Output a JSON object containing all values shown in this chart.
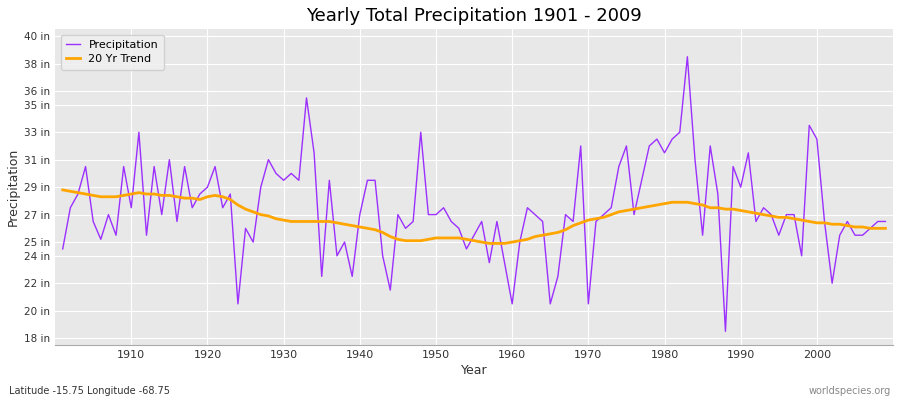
{
  "title": "Yearly Total Precipitation 1901 - 2009",
  "xlabel": "Year",
  "ylabel": "Precipitation",
  "bottom_left": "Latitude -15.75 Longitude -68.75",
  "bottom_right": "worldspecies.org",
  "precip_color": "#9B30FF",
  "trend_color": "#FFA500",
  "fig_bg_color": "#FFFFFF",
  "plot_bg_color": "#E8E8E8",
  "grid_color": "#FFFFFF",
  "ylim": [
    17.5,
    40.5
  ],
  "yticks": [
    18,
    20,
    22,
    24,
    25,
    27,
    29,
    31,
    33,
    35,
    36,
    38,
    40
  ],
  "xlim": [
    1900,
    2010
  ],
  "xticks": [
    1910,
    1920,
    1930,
    1940,
    1950,
    1960,
    1970,
    1980,
    1990,
    2000
  ],
  "years": [
    1901,
    1902,
    1903,
    1904,
    1905,
    1906,
    1907,
    1908,
    1909,
    1910,
    1911,
    1912,
    1913,
    1914,
    1915,
    1916,
    1917,
    1918,
    1919,
    1920,
    1921,
    1922,
    1923,
    1924,
    1925,
    1926,
    1927,
    1928,
    1929,
    1930,
    1931,
    1932,
    1933,
    1934,
    1935,
    1936,
    1937,
    1938,
    1939,
    1940,
    1941,
    1942,
    1943,
    1944,
    1945,
    1946,
    1947,
    1948,
    1949,
    1950,
    1951,
    1952,
    1953,
    1954,
    1955,
    1956,
    1957,
    1958,
    1959,
    1960,
    1961,
    1962,
    1963,
    1964,
    1965,
    1966,
    1967,
    1968,
    1969,
    1970,
    1971,
    1972,
    1973,
    1974,
    1975,
    1976,
    1977,
    1978,
    1979,
    1980,
    1981,
    1982,
    1983,
    1984,
    1985,
    1986,
    1987,
    1988,
    1989,
    1990,
    1991,
    1992,
    1993,
    1994,
    1995,
    1996,
    1997,
    1998,
    1999,
    2000,
    2001,
    2002,
    2003,
    2004,
    2005,
    2006,
    2007,
    2008,
    2009
  ],
  "precip": [
    24.5,
    27.5,
    28.5,
    30.5,
    26.5,
    25.2,
    27.0,
    25.5,
    30.5,
    27.5,
    33.0,
    25.5,
    30.5,
    27.0,
    31.0,
    26.5,
    30.5,
    27.5,
    28.5,
    29.0,
    30.5,
    27.5,
    28.5,
    20.5,
    26.0,
    25.0,
    29.0,
    31.0,
    30.0,
    29.5,
    30.0,
    29.5,
    35.5,
    31.5,
    22.5,
    29.5,
    24.0,
    25.0,
    22.5,
    27.0,
    29.5,
    29.5,
    24.0,
    21.5,
    27.0,
    26.0,
    26.5,
    33.0,
    27.0,
    27.0,
    27.5,
    26.5,
    26.0,
    24.5,
    25.5,
    26.5,
    23.5,
    26.5,
    23.5,
    20.5,
    25.0,
    27.5,
    27.0,
    26.5,
    20.5,
    22.5,
    27.0,
    26.5,
    32.0,
    20.5,
    26.5,
    27.0,
    27.5,
    30.5,
    32.0,
    27.0,
    29.5,
    32.0,
    32.5,
    31.5,
    32.5,
    33.0,
    38.5,
    31.0,
    25.5,
    32.0,
    28.5,
    18.5,
    30.5,
    29.0,
    31.5,
    26.5,
    27.5,
    27.0,
    25.5,
    27.0,
    27.0,
    24.0,
    33.5,
    32.5,
    26.5,
    22.0,
    25.5,
    26.5,
    25.5,
    25.5,
    26.0,
    26.5,
    26.5
  ],
  "trend": [
    28.8,
    28.7,
    28.6,
    28.5,
    28.4,
    28.3,
    28.3,
    28.3,
    28.4,
    28.5,
    28.6,
    28.5,
    28.5,
    28.4,
    28.4,
    28.3,
    28.2,
    28.2,
    28.1,
    28.3,
    28.4,
    28.3,
    28.1,
    27.7,
    27.4,
    27.2,
    27.0,
    26.9,
    26.7,
    26.6,
    26.5,
    26.5,
    26.5,
    26.5,
    26.5,
    26.5,
    26.4,
    26.3,
    26.2,
    26.1,
    26.0,
    25.9,
    25.7,
    25.4,
    25.2,
    25.1,
    25.1,
    25.1,
    25.2,
    25.3,
    25.3,
    25.3,
    25.3,
    25.2,
    25.1,
    25.0,
    24.9,
    24.9,
    24.9,
    25.0,
    25.1,
    25.2,
    25.4,
    25.5,
    25.6,
    25.7,
    25.9,
    26.2,
    26.4,
    26.6,
    26.7,
    26.8,
    27.0,
    27.2,
    27.3,
    27.4,
    27.5,
    27.6,
    27.7,
    27.8,
    27.9,
    27.9,
    27.9,
    27.8,
    27.7,
    27.5,
    27.5,
    27.4,
    27.4,
    27.3,
    27.2,
    27.1,
    27.0,
    26.9,
    26.8,
    26.8,
    26.7,
    26.6,
    26.5,
    26.4,
    26.4,
    26.3,
    26.3,
    26.2,
    26.1,
    26.1,
    26.0,
    26.0,
    26.0
  ]
}
